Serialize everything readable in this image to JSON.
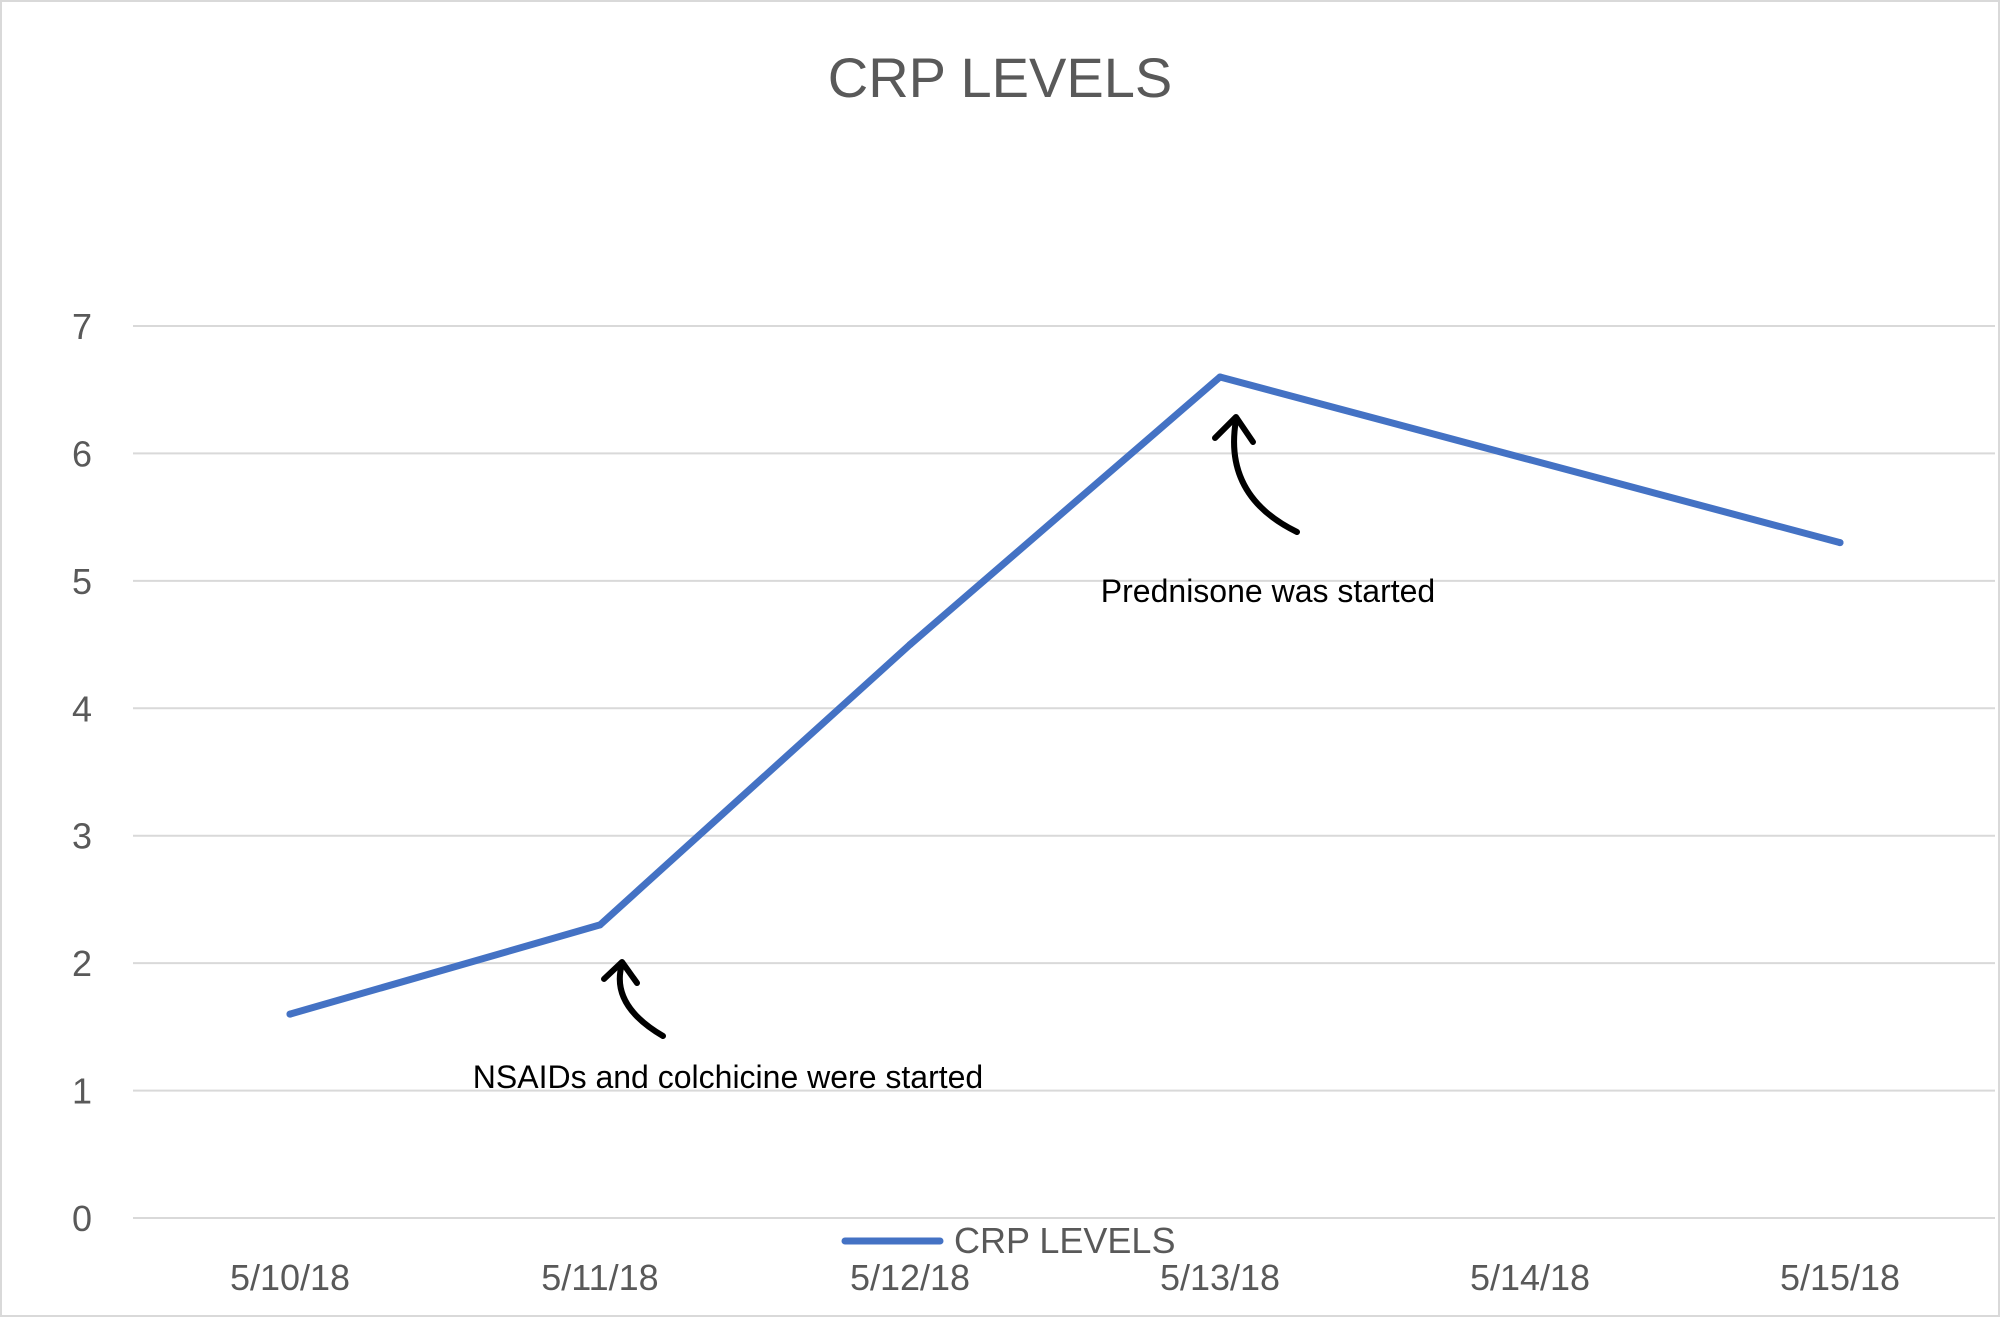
{
  "chart_data": {
    "type": "line",
    "title": "CRP LEVELS",
    "xlabel": "",
    "ylabel": "",
    "categories": [
      "5/10/18",
      "5/11/18",
      "5/12/18",
      "5/13/18",
      "5/14/18",
      "5/15/18"
    ],
    "series": [
      {
        "name": "CRP LEVELS",
        "values": [
          1.6,
          2.3,
          4.5,
          6.6,
          5.95,
          5.3
        ],
        "color": "#4472c4"
      }
    ],
    "ylim": [
      0,
      7
    ],
    "yticks": [
      "0",
      "1",
      "2",
      "3",
      "4",
      "5",
      "6",
      "7"
    ],
    "grid": true,
    "legend_position": "bottom",
    "annotations": [
      {
        "text": "NSAIDs and colchicine were started",
        "category": "5/11/18"
      },
      {
        "text": "Prednisone was started",
        "category": "5/13/18"
      }
    ]
  }
}
